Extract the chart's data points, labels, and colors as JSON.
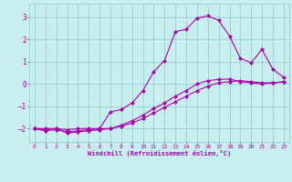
{
  "xlabel": "Windchill (Refroidissement éolien,°C)",
  "background_color": "#c8eef0",
  "line_color": "#aa00aa",
  "xlim": [
    -0.5,
    23.5
  ],
  "ylim": [
    -2.6,
    3.6
  ],
  "xticks": [
    0,
    1,
    2,
    3,
    4,
    5,
    6,
    7,
    8,
    9,
    10,
    11,
    12,
    13,
    14,
    15,
    16,
    17,
    18,
    19,
    20,
    21,
    22,
    23
  ],
  "yticks": [
    -2,
    -1,
    0,
    1,
    2,
    3
  ],
  "grid_color": "#88cccc",
  "line1_x": [
    0,
    1,
    2,
    3,
    4,
    5,
    6,
    7,
    8,
    9,
    10,
    11,
    12,
    13,
    14,
    15,
    16,
    17,
    18,
    19,
    20,
    21,
    22,
    23
  ],
  "line1_y": [
    -2.0,
    -2.1,
    -2.05,
    -2.15,
    -2.1,
    -2.05,
    -2.0,
    -1.25,
    -1.15,
    -0.85,
    -0.3,
    0.55,
    1.05,
    2.35,
    2.45,
    2.95,
    3.05,
    2.85,
    2.15,
    1.15,
    0.95,
    1.55,
    0.65,
    0.3
  ],
  "line2_x": [
    0,
    1,
    2,
    3,
    4,
    5,
    6,
    7,
    8,
    9,
    10,
    11,
    12,
    13,
    14,
    15,
    16,
    17,
    18,
    19,
    20,
    21,
    22,
    23
  ],
  "line2_y": [
    -2.0,
    -2.0,
    -2.0,
    -2.2,
    -2.15,
    -2.1,
    -2.05,
    -2.0,
    -1.85,
    -1.65,
    -1.4,
    -1.1,
    -0.85,
    -0.55,
    -0.3,
    0.0,
    0.15,
    0.2,
    0.22,
    0.1,
    0.05,
    0.0,
    0.05,
    0.08
  ],
  "line3_x": [
    0,
    1,
    2,
    3,
    4,
    5,
    6,
    7,
    8,
    9,
    10,
    11,
    12,
    13,
    14,
    15,
    16,
    17,
    18,
    19,
    20,
    21,
    22,
    23
  ],
  "line3_y": [
    -2.0,
    -2.05,
    -2.0,
    -2.05,
    -2.0,
    -2.0,
    -2.0,
    -2.0,
    -1.9,
    -1.75,
    -1.55,
    -1.3,
    -1.05,
    -0.8,
    -0.55,
    -0.3,
    -0.1,
    0.05,
    0.1,
    0.15,
    0.1,
    0.05,
    0.05,
    0.1
  ]
}
